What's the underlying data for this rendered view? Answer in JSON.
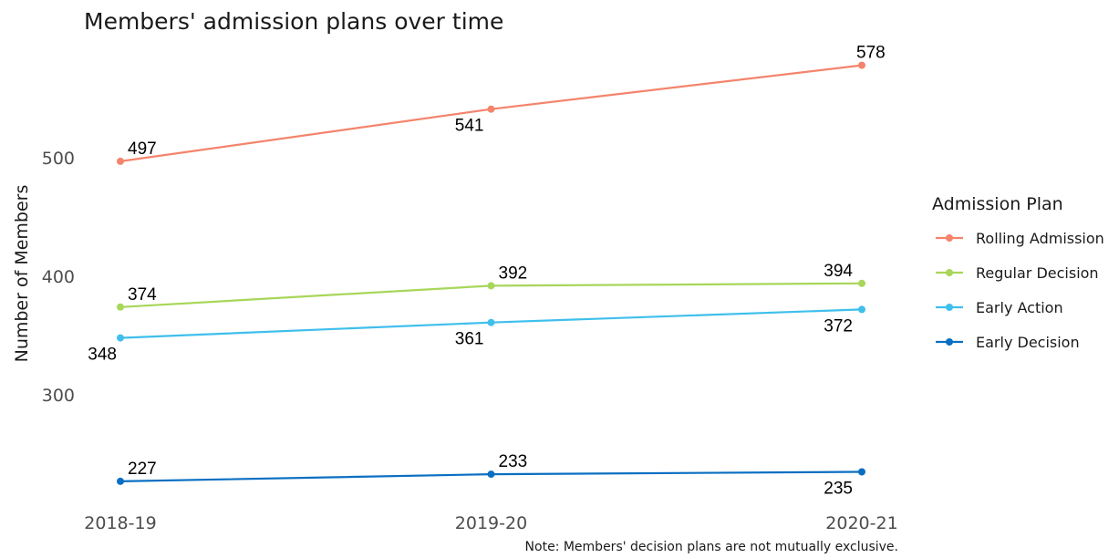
{
  "chart_data": {
    "type": "line",
    "title": "Members' admission plans over time",
    "ylabel": "Number of Members",
    "xlabel": "",
    "categories": [
      "2018-19",
      "2019-20",
      "2020-21"
    ],
    "yticks": [
      300,
      400,
      500
    ],
    "ylim": [
      220,
      585
    ],
    "grid": false,
    "legend": {
      "title": "Admission Plan",
      "position": "right"
    },
    "note": "Note: Members' decision plans are not mutually exclusive.",
    "series": [
      {
        "name": "Rolling Admission",
        "color": "#f4846c",
        "values": [
          497,
          541,
          578
        ],
        "label_pos": [
          "above",
          "below",
          "above"
        ]
      },
      {
        "name": "Regular Decision",
        "color": "#a8d65a",
        "values": [
          374,
          392,
          394
        ],
        "label_pos": [
          "above",
          "above",
          "above"
        ]
      },
      {
        "name": "Early Action",
        "color": "#3fbfec",
        "values": [
          348,
          361,
          372
        ],
        "label_pos": [
          "below",
          "below",
          "below"
        ]
      },
      {
        "name": "Early Decision",
        "color": "#0a6fc2",
        "values": [
          227,
          233,
          235
        ],
        "label_pos": [
          "above",
          "above",
          "below"
        ]
      }
    ]
  }
}
